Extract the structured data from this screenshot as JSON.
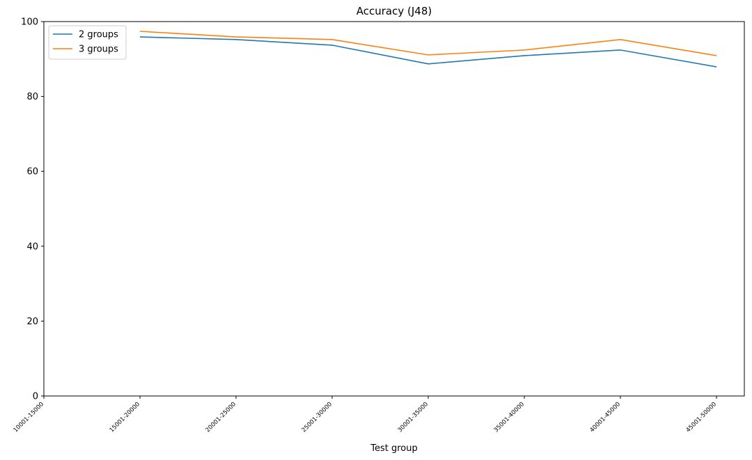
{
  "chart_data": {
    "type": "line",
    "title": "Accuracy (J48)",
    "x_label": "Test group",
    "categories": [
      "10001-15000",
      "15001-20000",
      "20001-25000",
      "25001-30000",
      "30001-35000",
      "35001-40000",
      "40001-45000",
      "45001-50000"
    ],
    "series": [
      {
        "name": "2 groups",
        "color": "#1f77b4",
        "values": [
          null,
          95.9,
          95.2,
          93.7,
          88.7,
          90.9,
          92.4,
          87.9
        ]
      },
      {
        "name": "3 groups",
        "color": "#ff7f0e",
        "values": [
          null,
          97.4,
          95.9,
          95.2,
          91.1,
          92.4,
          95.2,
          90.9
        ]
      }
    ],
    "ylim": [
      0,
      100
    ],
    "yticks": [
      0,
      20,
      40,
      60,
      80,
      100
    ],
    "grid": false,
    "legend": "upper left"
  }
}
